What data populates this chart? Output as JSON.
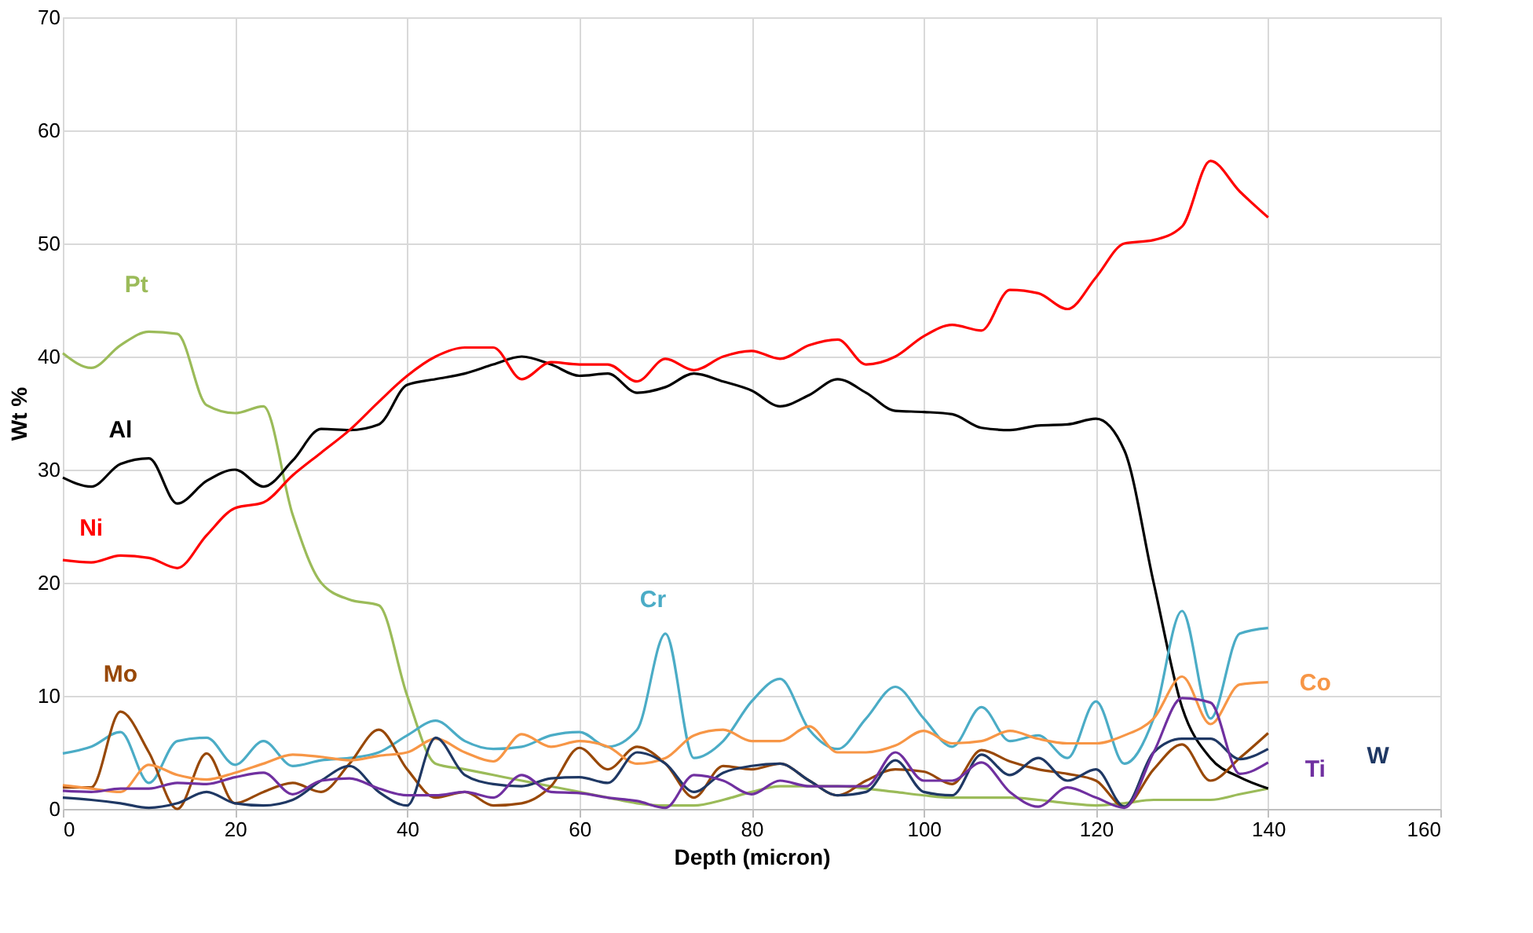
{
  "chart_data": {
    "type": "line",
    "xlabel": "Depth (micron)",
    "ylabel": "Wt %",
    "x": [
      0,
      3.3,
      6.7,
      10,
      13.3,
      16.7,
      20,
      23.3,
      26.7,
      30,
      33.3,
      36.7,
      40,
      43.3,
      46.7,
      50,
      53.3,
      56.7,
      60,
      63.3,
      66.7,
      70,
      73.3,
      76.7,
      80,
      83.3,
      86.7,
      90,
      93.3,
      96.7,
      100,
      103.3,
      106.7,
      110,
      113.3,
      116.7,
      120,
      123.3,
      126.7,
      130,
      133.3,
      136.7,
      140
    ],
    "series": [
      {
        "name": "Pt",
        "color": "#9bbb59",
        "values": [
          40.3,
          39,
          41,
          42.2,
          42,
          35.7,
          35,
          35.6,
          26,
          20,
          18.5,
          18,
          10,
          4,
          3.5,
          3,
          2.5,
          2,
          1.5,
          1,
          0.5,
          0.3,
          0.3,
          0.8,
          1.5,
          2,
          2,
          2,
          1.8,
          1.5,
          1.2,
          1,
          1,
          1,
          0.8,
          0.5,
          0.3,
          0.5,
          0.8,
          0.8,
          0.8,
          1.3,
          1.8
        ]
      },
      {
        "name": "Al",
        "color": "#000000",
        "values": [
          29.3,
          28.5,
          30.5,
          31,
          27,
          29,
          30,
          28.5,
          30.8,
          33.6,
          33.5,
          34,
          37.5,
          38,
          38.5,
          39.3,
          40,
          39.3,
          38.3,
          38.5,
          36.8,
          37.3,
          38.5,
          37.8,
          37,
          35.6,
          36.6,
          38,
          36.8,
          35.2,
          35.1,
          34.9,
          33.7,
          33.5,
          33.9,
          34,
          34.5,
          31.7,
          20,
          9,
          4.5,
          2.8,
          1.8
        ]
      },
      {
        "name": "Ni",
        "color": "#ff0000",
        "values": [
          22,
          21.8,
          22.4,
          22.2,
          21.3,
          24.2,
          26.6,
          27.1,
          29.5,
          31.5,
          33.5,
          36,
          38.3,
          40,
          40.8,
          40.8,
          38,
          39.5,
          39.3,
          39.3,
          37.8,
          39.8,
          38.8,
          40,
          40.5,
          39.8,
          41,
          41.5,
          39.3,
          40,
          41.8,
          42.8,
          42.3,
          45.9,
          45.6,
          44.2,
          47,
          50,
          50.3,
          51.5,
          57.3,
          54.6,
          52.3
        ]
      },
      {
        "name": "Cr",
        "color": "#4bacc6",
        "values": [
          4.9,
          5.5,
          6.8,
          2.3,
          6,
          6.3,
          3.9,
          6,
          3.8,
          4.3,
          4.5,
          5,
          6.5,
          7.8,
          6,
          5.3,
          5.5,
          6.5,
          6.8,
          5.5,
          7,
          15.5,
          4.5,
          6,
          9.5,
          11.5,
          7,
          5.3,
          8,
          10.8,
          8,
          5.5,
          9,
          6,
          6.5,
          4.5,
          9.5,
          4,
          8,
          17.5,
          8,
          15.5,
          16
        ]
      },
      {
        "name": "Mo",
        "color": "#984807",
        "values": [
          1.9,
          1.9,
          8.6,
          5,
          0,
          4.9,
          0.5,
          1.5,
          2.3,
          1.5,
          4,
          7,
          3.5,
          1,
          1.5,
          0.3,
          0.5,
          2,
          5.4,
          3.5,
          5.5,
          4,
          1,
          3.8,
          3.5,
          4,
          2.5,
          1.2,
          2.5,
          3.5,
          3.3,
          2.2,
          5.2,
          4.2,
          3.5,
          3.1,
          2.5,
          0.2,
          3.5,
          5.7,
          2.5,
          4.5,
          6.7
        ]
      },
      {
        "name": "Co",
        "color": "#f79646",
        "values": [
          2.1,
          1.8,
          1.5,
          3.9,
          3,
          2.6,
          3.2,
          4,
          4.8,
          4.6,
          4.3,
          4.7,
          5,
          6.2,
          5,
          4.2,
          6.6,
          5.5,
          6,
          5.5,
          4,
          4.5,
          6.5,
          7,
          6,
          6,
          7.3,
          5,
          5,
          5.6,
          6.9,
          5.8,
          6,
          6.9,
          6.2,
          5.8,
          5.8,
          6.5,
          8,
          11.7,
          7.5,
          11,
          11.2
        ]
      },
      {
        "name": "W",
        "color": "#1f3864",
        "values": [
          1,
          0.8,
          0.5,
          0.1,
          0.5,
          1.5,
          0.5,
          0.3,
          0.8,
          2.5,
          3.8,
          1.5,
          0.3,
          6.3,
          3,
          2.2,
          2,
          2.7,
          2.8,
          2.3,
          5,
          4,
          1.5,
          3.2,
          3.8,
          4,
          2.5,
          1.2,
          1.5,
          4.3,
          1.5,
          1.2,
          4.8,
          3,
          4.5,
          2.5,
          3.5,
          0.2,
          5,
          6.2,
          6.2,
          4.4,
          5.3
        ]
      },
      {
        "name": "Ti",
        "color": "#7030a0",
        "values": [
          1.6,
          1.5,
          1.8,
          1.8,
          2.3,
          2.2,
          2.8,
          3.2,
          1.3,
          2.5,
          2.7,
          1.8,
          1.2,
          1.2,
          1.5,
          1,
          3,
          1.5,
          1.4,
          1,
          0.7,
          0.1,
          3,
          2.5,
          1.3,
          2.5,
          2,
          2,
          2,
          5,
          2.5,
          2.5,
          4.1,
          1.5,
          0.2,
          1.9,
          1,
          0.1,
          5,
          9.8,
          9.4,
          3.1,
          4.1
        ]
      }
    ],
    "xlim": [
      0,
      160
    ],
    "xticks": [
      0,
      20,
      40,
      60,
      80,
      100,
      120,
      140,
      160
    ],
    "ylim": [
      0,
      70
    ],
    "yticks": [
      0,
      10,
      20,
      30,
      40,
      50,
      60,
      70
    ],
    "grid": true,
    "marker": "none",
    "line_style": "solid"
  }
}
